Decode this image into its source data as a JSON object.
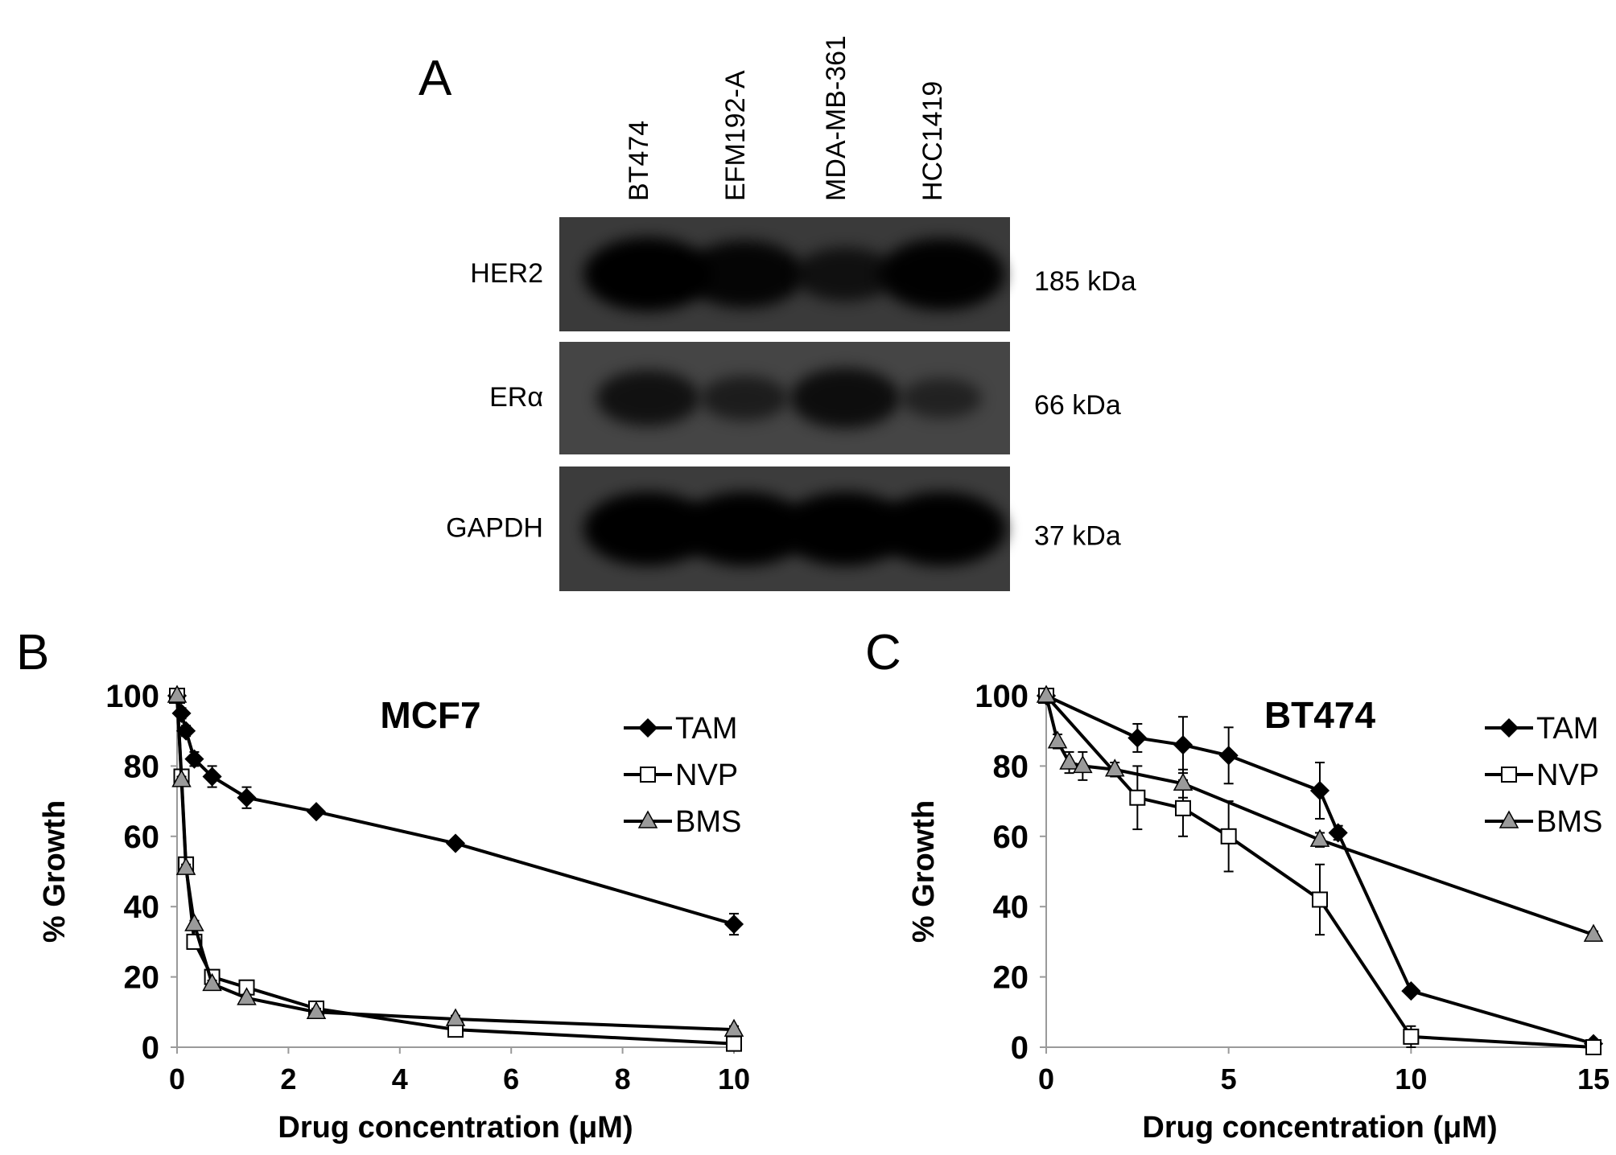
{
  "panel_a": {
    "letter": "A",
    "lanes": [
      "BT474",
      "EFM192-A",
      "MDA-MB-361",
      "HCC1419"
    ],
    "blots": [
      {
        "protein": "HER2",
        "mw": "185 kDa",
        "band_intensity": [
          1.0,
          0.85,
          0.55,
          0.95
        ],
        "tone": "#3a3a3a"
      },
      {
        "protein": "ERα",
        "mw": "66 kDa",
        "band_intensity": [
          0.6,
          0.35,
          0.7,
          0.25
        ],
        "tone": "#454545"
      },
      {
        "protein": "GAPDH",
        "mw": "37 kDa",
        "band_intensity": [
          1.0,
          1.0,
          1.0,
          1.0
        ],
        "tone": "#3c3c3c"
      }
    ]
  },
  "panel_b": {
    "letter": "B"
  },
  "panel_c": {
    "letter": "C"
  },
  "chart_data": [
    {
      "type": "line",
      "title": "MCF7",
      "xlabel": "Drug concentration (μM)",
      "ylabel": "% Growth",
      "xlim": [
        0,
        10
      ],
      "ylim": [
        0,
        100
      ],
      "xticks": [
        0,
        2,
        4,
        6,
        8,
        10
      ],
      "yticks": [
        0,
        20,
        40,
        60,
        80,
        100
      ],
      "grid": false,
      "legend": "top-right",
      "series": [
        {
          "name": "TAM",
          "marker": "diamond",
          "x": [
            0,
            0.08,
            0.16,
            0.31,
            0.63,
            1.25,
            2.5,
            5,
            10
          ],
          "y": [
            100,
            95,
            90,
            82,
            77,
            71,
            67,
            58,
            35
          ],
          "err": [
            0,
            1.5,
            1.5,
            2,
            3,
            3,
            1,
            1,
            3
          ]
        },
        {
          "name": "NVP",
          "marker": "square",
          "x": [
            0,
            0.08,
            0.16,
            0.31,
            0.63,
            1.25,
            2.5,
            5,
            10
          ],
          "y": [
            100,
            77,
            52,
            30,
            20,
            17,
            11,
            5,
            1
          ],
          "err": [
            0,
            1,
            1,
            1,
            1,
            1,
            1,
            1,
            1
          ]
        },
        {
          "name": "BMS",
          "marker": "triangle",
          "x": [
            0,
            0.08,
            0.16,
            0.31,
            0.63,
            1.25,
            2.5,
            5,
            10
          ],
          "y": [
            100,
            76,
            51,
            35,
            18,
            14,
            10,
            8,
            5
          ],
          "err": [
            0,
            1,
            1,
            1,
            1,
            1,
            1,
            1,
            1
          ]
        }
      ]
    },
    {
      "type": "line",
      "title": "BT474",
      "xlabel": "Drug concentration (μM)",
      "ylabel": "% Growth",
      "xlim": [
        0,
        15
      ],
      "ylim": [
        0,
        100
      ],
      "xticks": [
        0,
        5,
        10,
        15
      ],
      "yticks": [
        0,
        20,
        40,
        60,
        80,
        100
      ],
      "grid": false,
      "legend": "top-right",
      "series": [
        {
          "name": "TAM",
          "marker": "diamond",
          "x": [
            0,
            2.5,
            3.75,
            5,
            7.5,
            8,
            10,
            15
          ],
          "y": [
            100,
            88,
            86,
            83,
            73,
            61,
            16,
            1
          ],
          "err": [
            0,
            4,
            8,
            8,
            8,
            2,
            1,
            1
          ]
        },
        {
          "name": "NVP",
          "marker": "square",
          "x": [
            0,
            2.5,
            3.75,
            5,
            7.5,
            10,
            15
          ],
          "y": [
            100,
            71,
            68,
            60,
            42,
            3,
            0
          ],
          "err": [
            0,
            9,
            8,
            10,
            10,
            3,
            1
          ]
        },
        {
          "name": "BMS",
          "marker": "triangle",
          "x": [
            0,
            0.31,
            0.63,
            1,
            1.88,
            3.75,
            7.5,
            15
          ],
          "y": [
            100,
            87,
            81,
            80,
            79,
            75,
            59,
            32
          ],
          "err": [
            0,
            2,
            3,
            4,
            2,
            4,
            2,
            1
          ]
        }
      ]
    }
  ]
}
